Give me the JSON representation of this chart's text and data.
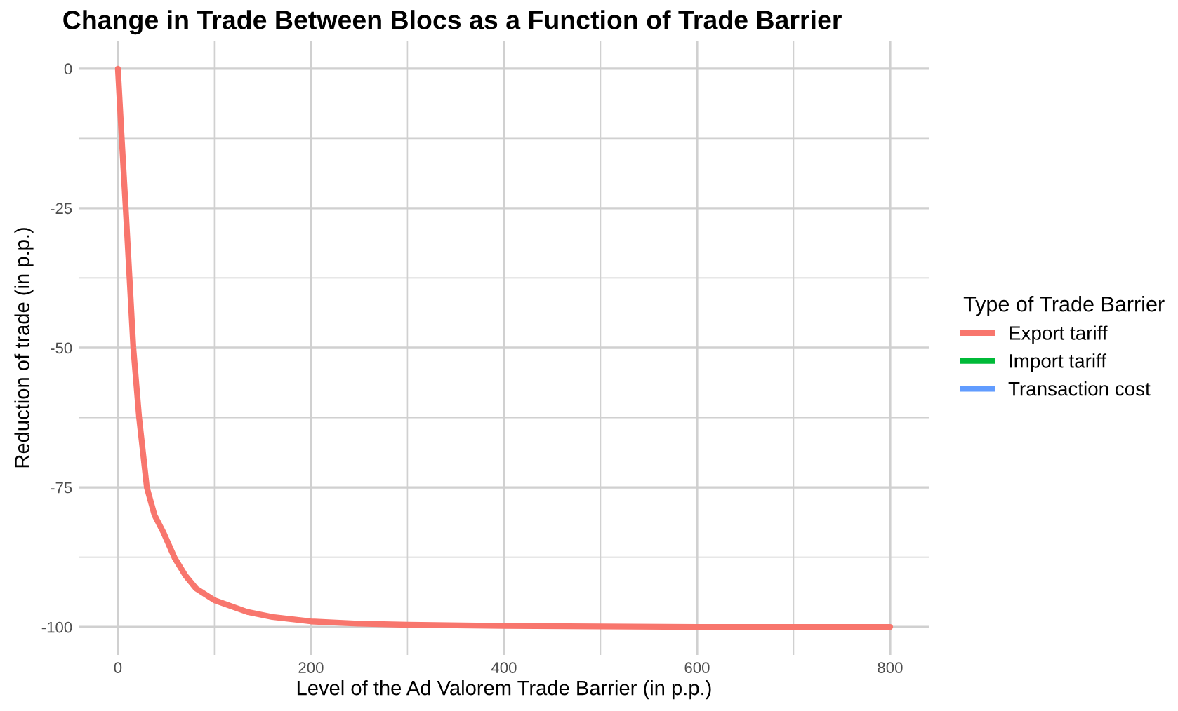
{
  "chart_data": {
    "type": "line",
    "title": "Change in Trade Between Blocs as a Function of Trade Barrier",
    "xlabel": "Level of the Ad Valorem Trade Barrier (in p.p.)",
    "ylabel": "Reduction of trade (in p.p.)",
    "legend_title": "Type of Trade Barrier",
    "legend": "right",
    "grid": true,
    "x": [
      0,
      4,
      8,
      12,
      16,
      22,
      30,
      38,
      47,
      59,
      70,
      81,
      100,
      134,
      160,
      200,
      250,
      300,
      400,
      500,
      600,
      700,
      800
    ],
    "series": [
      {
        "name": "Export tariff",
        "color": "#f8766d",
        "values": [
          0,
          -12.6,
          -24.7,
          -37.3,
          -50,
          -62.5,
          -75,
          -80,
          -83,
          -87.7,
          -90.8,
          -93.1,
          -95.2,
          -97.3,
          -98.2,
          -99,
          -99.4,
          -99.6,
          -99.8,
          -99.9,
          -100,
          -100,
          -100
        ]
      },
      {
        "name": "Import tariff",
        "color": "#00ba38",
        "values": [
          null,
          null,
          null,
          null,
          null,
          null,
          null,
          null,
          null,
          null,
          null,
          null,
          null,
          null,
          null,
          null,
          null,
          null,
          null,
          null,
          null,
          null,
          null
        ]
      },
      {
        "name": "Transaction cost",
        "color": "#619cff",
        "values": [
          null,
          null,
          null,
          null,
          null,
          null,
          null,
          null,
          null,
          null,
          null,
          null,
          null,
          null,
          null,
          null,
          null,
          null,
          null,
          null,
          null,
          null,
          null
        ]
      }
    ],
    "xlim": [
      -40,
      840
    ],
    "xticks": [
      0,
      {
        "value": 100,
        "label": null
      },
      200,
      {
        "value": 300,
        "label": null
      },
      400,
      {
        "value": 500,
        "label": null
      },
      600,
      {
        "value": 700,
        "label": null
      },
      800
    ],
    "ylim": [
      -105,
      5
    ],
    "yticks": [
      {
        "value": -100,
        "label": "-100"
      },
      {
        "value": -87.5,
        "label": null
      },
      {
        "value": -75,
        "label": "-75"
      },
      {
        "value": -62.5,
        "label": null
      },
      {
        "value": -50,
        "label": "-50"
      },
      {
        "value": -37.5,
        "label": null
      },
      {
        "value": -25,
        "label": "-25"
      },
      {
        "value": -12.5,
        "label": null
      },
      0
    ]
  }
}
